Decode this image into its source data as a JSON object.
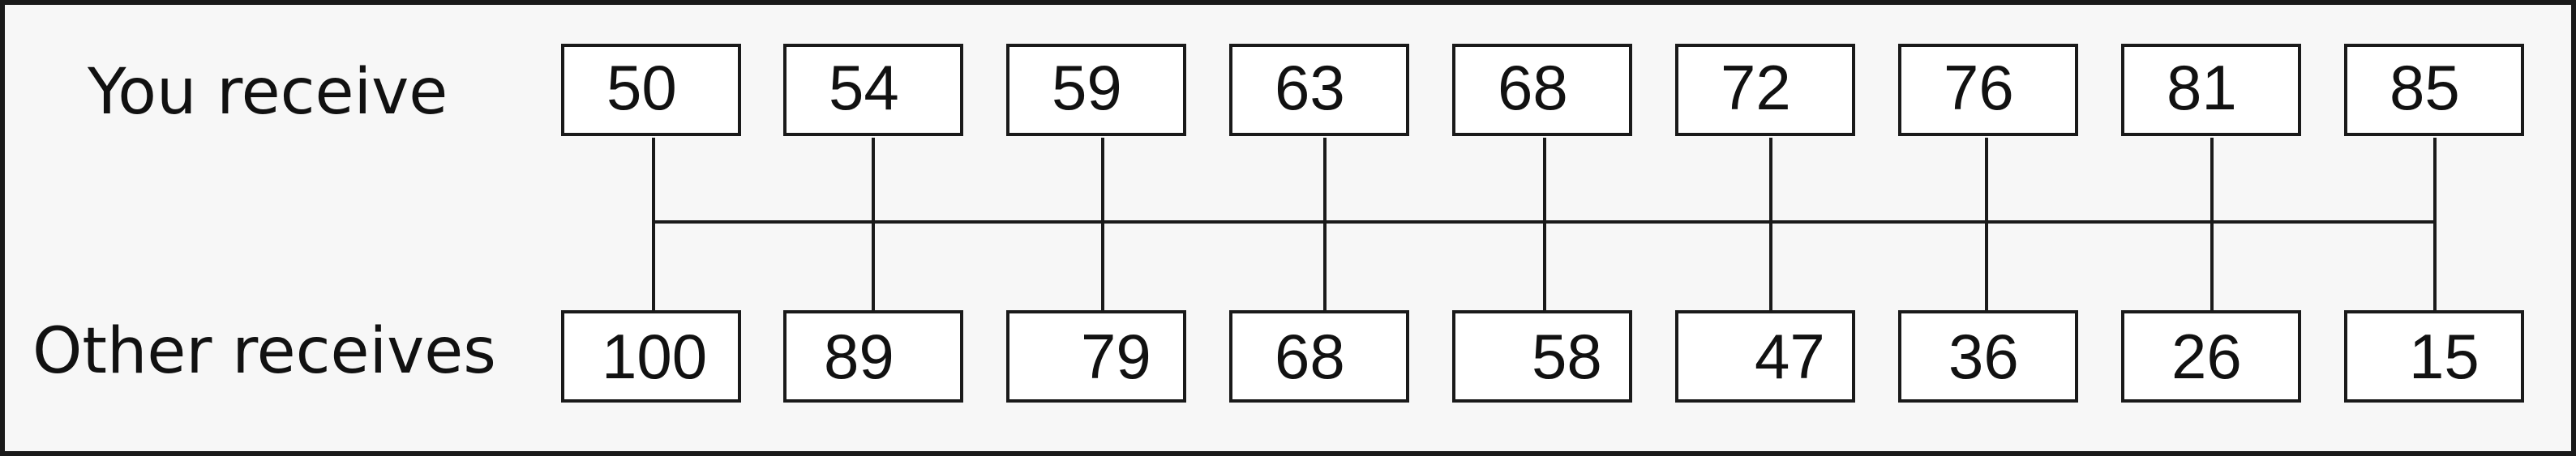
{
  "labels": {
    "top_row": "You receive",
    "bottom_row": "Other receives"
  },
  "options": [
    {
      "you": "50",
      "other": "100"
    },
    {
      "you": "54",
      "other": "89"
    },
    {
      "you": "59",
      "other": "79"
    },
    {
      "you": "63",
      "other": "68"
    },
    {
      "you": "68",
      "other": "58"
    },
    {
      "you": "72",
      "other": "47"
    },
    {
      "you": "76",
      "other": "36"
    },
    {
      "you": "81",
      "other": "26"
    },
    {
      "you": "85",
      "other": "15"
    }
  ]
}
